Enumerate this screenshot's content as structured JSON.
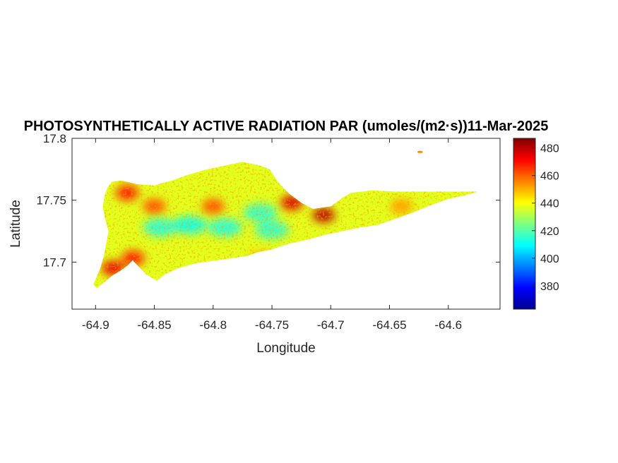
{
  "chart_data": {
    "type": "heatmap",
    "title": "PHOTOSYNTHETICALLY ACTIVE RADIATION PAR (umoles/(m2·s))11-Mar-2025",
    "xlabel": "Longitude",
    "ylabel": "Latitude",
    "xlim": [
      -64.92,
      -64.556
    ],
    "ylim": [
      17.662,
      17.8
    ],
    "x_ticks": [
      -64.9,
      -64.85,
      -64.8,
      -64.75,
      -64.7,
      -64.65,
      -64.6
    ],
    "x_tick_labels": [
      "-64.9",
      "-64.85",
      "-64.8",
      "-64.75",
      "-64.7",
      "-64.65",
      "-64.6"
    ],
    "y_ticks": [
      17.7,
      17.75,
      17.8
    ],
    "y_tick_labels": [
      "17.7",
      "17.75",
      "17.8"
    ],
    "colorbar": {
      "colormap": "jet",
      "range": [
        363,
        487
      ],
      "ticks": [
        380,
        400,
        420,
        440,
        460,
        480
      ],
      "tick_labels": [
        "380",
        "400",
        "420",
        "440",
        "460",
        "480"
      ]
    },
    "island_outline_lonlat": [
      [
        -64.899,
        17.679
      ],
      [
        -64.892,
        17.684
      ],
      [
        -64.886,
        17.689
      ],
      [
        -64.879,
        17.693
      ],
      [
        -64.873,
        17.697
      ],
      [
        -64.868,
        17.702
      ],
      [
        -64.868,
        17.701
      ],
      [
        -64.857,
        17.69
      ],
      [
        -64.848,
        17.685
      ],
      [
        -64.841,
        17.69
      ],
      [
        -64.83,
        17.695
      ],
      [
        -64.815,
        17.699
      ],
      [
        -64.8,
        17.701
      ],
      [
        -64.785,
        17.703
      ],
      [
        -64.771,
        17.705
      ],
      [
        -64.762,
        17.708
      ],
      [
        -64.751,
        17.71
      ],
      [
        -64.735,
        17.715
      ],
      [
        -64.72,
        17.718
      ],
      [
        -64.705,
        17.722
      ],
      [
        -64.69,
        17.725
      ],
      [
        -64.675,
        17.728
      ],
      [
        -64.66,
        17.73
      ],
      [
        -64.645,
        17.735
      ],
      [
        -64.63,
        17.74
      ],
      [
        -64.615,
        17.746
      ],
      [
        -64.6,
        17.751
      ],
      [
        -64.586,
        17.754
      ],
      [
        -64.578,
        17.756
      ],
      [
        -64.575,
        17.757
      ],
      [
        -64.586,
        17.757
      ],
      [
        -64.605,
        17.757
      ],
      [
        -64.625,
        17.757
      ],
      [
        -64.645,
        17.757
      ],
      [
        -64.665,
        17.758
      ],
      [
        -64.683,
        17.756
      ],
      [
        -64.69,
        17.752
      ],
      [
        -64.7,
        17.745
      ],
      [
        -64.715,
        17.743
      ],
      [
        -64.725,
        17.748
      ],
      [
        -64.735,
        17.755
      ],
      [
        -64.745,
        17.765
      ],
      [
        -64.752,
        17.775
      ],
      [
        -64.76,
        17.778
      ],
      [
        -64.775,
        17.781
      ],
      [
        -64.79,
        17.778
      ],
      [
        -64.805,
        17.775
      ],
      [
        -64.82,
        17.771
      ],
      [
        -64.835,
        17.766
      ],
      [
        -64.85,
        17.762
      ],
      [
        -64.865,
        17.763
      ],
      [
        -64.878,
        17.766
      ],
      [
        -64.886,
        17.765
      ],
      [
        -64.89,
        17.76
      ],
      [
        -64.892,
        17.755
      ],
      [
        -64.894,
        17.745
      ],
      [
        -64.892,
        17.735
      ],
      [
        -64.889,
        17.725
      ],
      [
        -64.891,
        17.715
      ],
      [
        -64.893,
        17.705
      ],
      [
        -64.896,
        17.695
      ],
      [
        -64.902,
        17.682
      ]
    ],
    "hotspots_lonlat_value": [
      [
        -64.873,
        17.756,
        470
      ],
      [
        -64.85,
        17.745,
        462
      ],
      [
        -64.706,
        17.738,
        480
      ],
      [
        -64.733,
        17.748,
        476
      ],
      [
        -64.868,
        17.703,
        470
      ],
      [
        -64.885,
        17.695,
        474
      ],
      [
        -64.76,
        17.703,
        450
      ],
      [
        -64.8,
        17.745,
        462
      ],
      [
        -64.64,
        17.745,
        452
      ]
    ],
    "coldspots_lonlat_value": [
      [
        -64.82,
        17.73,
        410
      ],
      [
        -64.845,
        17.728,
        412
      ],
      [
        -64.79,
        17.728,
        412
      ],
      [
        -64.76,
        17.74,
        414
      ],
      [
        -64.75,
        17.726,
        414
      ]
    ]
  }
}
